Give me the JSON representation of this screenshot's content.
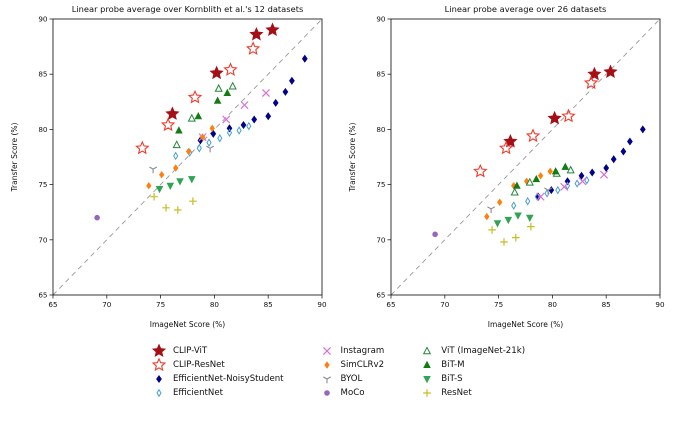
{
  "series_styles": [
    {
      "name": "CLIP-ViT",
      "marker": "star",
      "filled": true,
      "color": "#a50f15",
      "size": 6.6
    },
    {
      "name": "CLIP-ResNet",
      "marker": "star",
      "filled": false,
      "color": "#ef3b2c",
      "size": 6.2
    },
    {
      "name": "EfficientNet-NoisyStudent",
      "marker": "diamond",
      "filled": true,
      "color": "#00008b",
      "size": 3.5
    },
    {
      "name": "EfficientNet",
      "marker": "diamond",
      "filled": false,
      "color": "#44a0d5",
      "size": 3.3
    },
    {
      "name": "Instagram",
      "marker": "x",
      "filled": false,
      "color": "#da70d6",
      "size": 3.6
    },
    {
      "name": "SimCLRv2",
      "marker": "diamond",
      "filled": true,
      "color": "#ff7f0e",
      "size": 3.2
    },
    {
      "name": "BYOL",
      "marker": "y",
      "filled": false,
      "color": "#8c8c8c",
      "size": 4.2
    },
    {
      "name": "MoCo",
      "marker": "circle",
      "filled": true,
      "color": "#9467bd",
      "size": 2.4
    },
    {
      "name": "ViT (ImageNet-21k)",
      "marker": "triangle-up",
      "filled": false,
      "color": "#22863a",
      "size": 3.6
    },
    {
      "name": "BiT-M",
      "marker": "triangle-up",
      "filled": true,
      "color": "#147a14",
      "size": 3.6
    },
    {
      "name": "BiT-S",
      "marker": "triangle-down",
      "filled": true,
      "color": "#31a354",
      "size": 3.6
    },
    {
      "name": "ResNet",
      "marker": "plus",
      "filled": false,
      "color": "#c9bd22",
      "size": 3.8
    }
  ],
  "chart_data": [
    {
      "type": "scatter",
      "title": "Linear probe average over Kornblith et al.'s 12 datasets",
      "xlabel": "ImageNet Score (%)",
      "ylabel": "Transfer Score (%)",
      "xlim": [
        65,
        90
      ],
      "ylim": [
        65,
        90
      ],
      "xticks": [
        65,
        70,
        75,
        80,
        85,
        90
      ],
      "yticks": [
        65,
        70,
        75,
        80,
        85,
        90
      ],
      "identity_line": true,
      "series": [
        {
          "name": "CLIP-ViT",
          "points": [
            [
              76.1,
              81.4
            ],
            [
              80.2,
              85.1
            ],
            [
              83.9,
              88.6
            ],
            [
              85.4,
              89.0
            ]
          ]
        },
        {
          "name": "CLIP-ResNet",
          "points": [
            [
              73.3,
              78.3
            ],
            [
              75.7,
              80.4
            ],
            [
              78.2,
              82.9
            ],
            [
              81.5,
              85.4
            ],
            [
              83.6,
              87.3
            ]
          ]
        },
        {
          "name": "EfficientNet-NoisyStudent",
          "points": [
            [
              78.7,
              79.0
            ],
            [
              79.9,
              79.6
            ],
            [
              81.4,
              80.1
            ],
            [
              82.7,
              80.4
            ],
            [
              83.7,
              80.9
            ],
            [
              85.0,
              81.2
            ],
            [
              85.7,
              82.4
            ],
            [
              86.6,
              83.4
            ],
            [
              87.2,
              84.4
            ],
            [
              88.4,
              86.4
            ]
          ]
        },
        {
          "name": "EfficientNet",
          "points": [
            [
              76.4,
              77.6
            ],
            [
              77.7,
              77.9
            ],
            [
              78.6,
              78.3
            ],
            [
              79.5,
              78.8
            ],
            [
              80.5,
              79.2
            ],
            [
              81.4,
              79.7
            ],
            [
              82.3,
              79.9
            ],
            [
              83.2,
              80.3
            ]
          ]
        },
        {
          "name": "Instagram",
          "points": [
            [
              78.9,
              79.3
            ],
            [
              81.1,
              80.9
            ],
            [
              82.8,
              82.2
            ],
            [
              84.8,
              83.3
            ]
          ]
        },
        {
          "name": "SimCLRv2",
          "points": [
            [
              73.9,
              74.9
            ],
            [
              75.1,
              75.9
            ],
            [
              76.4,
              76.5
            ],
            [
              77.6,
              78.0
            ],
            [
              78.9,
              79.3
            ],
            [
              79.8,
              80.1
            ]
          ]
        },
        {
          "name": "BYOL",
          "points": [
            [
              74.3,
              76.4
            ],
            [
              79.6,
              78.3
            ]
          ]
        },
        {
          "name": "MoCo",
          "points": [
            [
              69.1,
              72.0
            ]
          ]
        },
        {
          "name": "ViT (ImageNet-21k)",
          "points": [
            [
              76.5,
              78.6
            ],
            [
              77.9,
              81.0
            ],
            [
              80.4,
              83.7
            ],
            [
              81.7,
              83.9
            ]
          ]
        },
        {
          "name": "BiT-M",
          "points": [
            [
              76.7,
              79.9
            ],
            [
              78.5,
              81.2
            ],
            [
              80.3,
              82.6
            ],
            [
              81.2,
              83.3
            ]
          ]
        },
        {
          "name": "BiT-S",
          "points": [
            [
              74.9,
              74.6
            ],
            [
              75.9,
              74.9
            ],
            [
              76.8,
              75.3
            ],
            [
              77.9,
              75.5
            ]
          ]
        },
        {
          "name": "ResNet",
          "points": [
            [
              74.4,
              73.9
            ],
            [
              75.5,
              72.9
            ],
            [
              76.6,
              72.7
            ],
            [
              78.0,
              73.5
            ]
          ]
        }
      ]
    },
    {
      "type": "scatter",
      "title": "Linear probe average over 26 datasets",
      "xlabel": "ImageNet Score (%)",
      "ylabel": "Transfer Score (%)",
      "xlim": [
        65,
        90
      ],
      "ylim": [
        65,
        90
      ],
      "xticks": [
        65,
        70,
        75,
        80,
        85,
        90
      ],
      "yticks": [
        65,
        70,
        75,
        80,
        85,
        90
      ],
      "identity_line": true,
      "series": [
        {
          "name": "CLIP-ViT",
          "points": [
            [
              76.1,
              78.9
            ],
            [
              80.2,
              81.0
            ],
            [
              83.9,
              85.0
            ],
            [
              85.4,
              85.2
            ]
          ]
        },
        {
          "name": "CLIP-ResNet",
          "points": [
            [
              73.3,
              76.2
            ],
            [
              75.7,
              78.3
            ],
            [
              78.2,
              79.4
            ],
            [
              81.5,
              81.2
            ],
            [
              83.6,
              84.2
            ]
          ]
        },
        {
          "name": "EfficientNet-NoisyStudent",
          "points": [
            [
              78.7,
              73.9
            ],
            [
              79.9,
              74.5
            ],
            [
              81.4,
              75.3
            ],
            [
              82.7,
              75.8
            ],
            [
              83.7,
              76.1
            ],
            [
              85.0,
              76.5
            ],
            [
              85.7,
              77.3
            ],
            [
              86.6,
              78.0
            ],
            [
              87.2,
              78.9
            ],
            [
              88.4,
              80.0
            ]
          ]
        },
        {
          "name": "EfficientNet",
          "points": [
            [
              76.4,
              73.1
            ],
            [
              77.7,
              73.5
            ],
            [
              78.6,
              73.9
            ],
            [
              79.5,
              74.2
            ],
            [
              80.5,
              74.5
            ],
            [
              81.4,
              74.9
            ],
            [
              82.3,
              75.1
            ],
            [
              83.2,
              75.4
            ]
          ]
        },
        {
          "name": "Instagram",
          "points": [
            [
              78.9,
              73.9
            ],
            [
              81.1,
              74.8
            ],
            [
              82.8,
              75.3
            ],
            [
              84.8,
              75.9
            ]
          ]
        },
        {
          "name": "SimCLRv2",
          "points": [
            [
              73.9,
              72.1
            ],
            [
              75.1,
              73.4
            ],
            [
              76.4,
              74.9
            ],
            [
              77.6,
              75.3
            ],
            [
              78.9,
              75.8
            ],
            [
              79.8,
              76.2
            ]
          ]
        },
        {
          "name": "BYOL",
          "points": [
            [
              74.3,
              72.8
            ],
            [
              79.6,
              74.5
            ]
          ]
        },
        {
          "name": "MoCo",
          "points": [
            [
              69.1,
              70.5
            ]
          ]
        },
        {
          "name": "ViT (ImageNet-21k)",
          "points": [
            [
              76.5,
              74.3
            ],
            [
              77.9,
              75.2
            ],
            [
              80.4,
              76.0
            ],
            [
              81.7,
              76.3
            ]
          ]
        },
        {
          "name": "BiT-M",
          "points": [
            [
              76.7,
              74.9
            ],
            [
              78.5,
              75.5
            ],
            [
              80.3,
              76.2
            ],
            [
              81.2,
              76.6
            ]
          ]
        },
        {
          "name": "BiT-S",
          "points": [
            [
              74.9,
              71.5
            ],
            [
              75.9,
              71.8
            ],
            [
              76.8,
              72.2
            ],
            [
              77.9,
              72.0
            ]
          ]
        },
        {
          "name": "ResNet",
          "points": [
            [
              74.4,
              70.9
            ],
            [
              75.5,
              69.8
            ],
            [
              76.6,
              70.2
            ],
            [
              78.0,
              71.2
            ]
          ]
        }
      ]
    }
  ],
  "legend": {
    "columns": [
      [
        "CLIP-ViT",
        "CLIP-ResNet",
        "EfficientNet-NoisyStudent",
        "EfficientNet"
      ],
      [
        "Instagram",
        "SimCLRv2",
        "BYOL",
        "MoCo"
      ],
      [
        "ViT (ImageNet-21k)",
        "BiT-M",
        "BiT-S",
        "ResNet"
      ]
    ]
  }
}
